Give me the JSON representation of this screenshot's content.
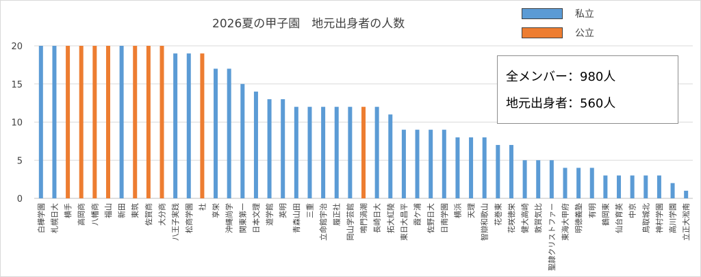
{
  "chart_data": {
    "type": "bar",
    "title": "2026夏の甲子園　地元出身者の人数",
    "ylim": [
      0,
      20
    ],
    "yticks": [
      0,
      5,
      10,
      15,
      20
    ],
    "grid": true,
    "legend_position": "top-right",
    "series_colors": {
      "私立": "#5b9bd5",
      "公立": "#ed7d31"
    },
    "categories": [
      "白樺学園",
      "札幌日大",
      "横手",
      "高岡商",
      "八幡商",
      "福山",
      "新田",
      "東筑",
      "佐賀商",
      "大分商",
      "八王子実践",
      "松商学園",
      "社",
      "享栄",
      "沖縄尚学",
      "関東第一",
      "日本文理",
      "遊学館",
      "英明",
      "青森山田",
      "三重",
      "立命館宇治",
      "履正社",
      "岡山学芸館",
      "鳴門渦潮",
      "長崎日大",
      "拓大紅陵",
      "東日大昌平",
      "霞ケ浦",
      "佐野日大",
      "日南学園",
      "横浜",
      "天理",
      "智辯和歌山",
      "花巻東",
      "花咲徳栄",
      "健大高崎",
      "敦賀気比",
      "聖隷クリストファー",
      "東海大甲府",
      "明徳義塾",
      "有明",
      "鶴岡東",
      "仙台育英",
      "中京",
      "鳥取城北",
      "神村学園",
      "高川学園",
      "立正大淞南"
    ],
    "values": [
      20,
      20,
      20,
      20,
      20,
      20,
      20,
      20,
      20,
      20,
      19,
      19,
      19,
      17,
      17,
      15,
      14,
      13,
      13,
      12,
      12,
      12,
      12,
      12,
      12,
      12,
      11,
      9,
      9,
      9,
      9,
      8,
      8,
      8,
      7,
      7,
      5,
      5,
      5,
      4,
      4,
      4,
      3,
      3,
      3,
      3,
      3,
      2,
      1
    ],
    "types": [
      "私立",
      "私立",
      "公立",
      "公立",
      "公立",
      "公立",
      "私立",
      "公立",
      "公立",
      "公立",
      "私立",
      "私立",
      "公立",
      "私立",
      "私立",
      "私立",
      "私立",
      "私立",
      "私立",
      "私立",
      "私立",
      "私立",
      "私立",
      "私立",
      "公立",
      "私立",
      "私立",
      "私立",
      "私立",
      "私立",
      "私立",
      "私立",
      "私立",
      "私立",
      "私立",
      "私立",
      "私立",
      "私立",
      "私立",
      "私立",
      "私立",
      "私立",
      "私立",
      "私立",
      "私立",
      "私立",
      "私立",
      "私立",
      "私立"
    ]
  },
  "legend": [
    {
      "label": "私立",
      "color": "#5b9bd5"
    },
    {
      "label": "公立",
      "color": "#ed7d31"
    }
  ],
  "info": {
    "line1": "全メンバー：980人",
    "line2": "地元出身者：560人"
  }
}
